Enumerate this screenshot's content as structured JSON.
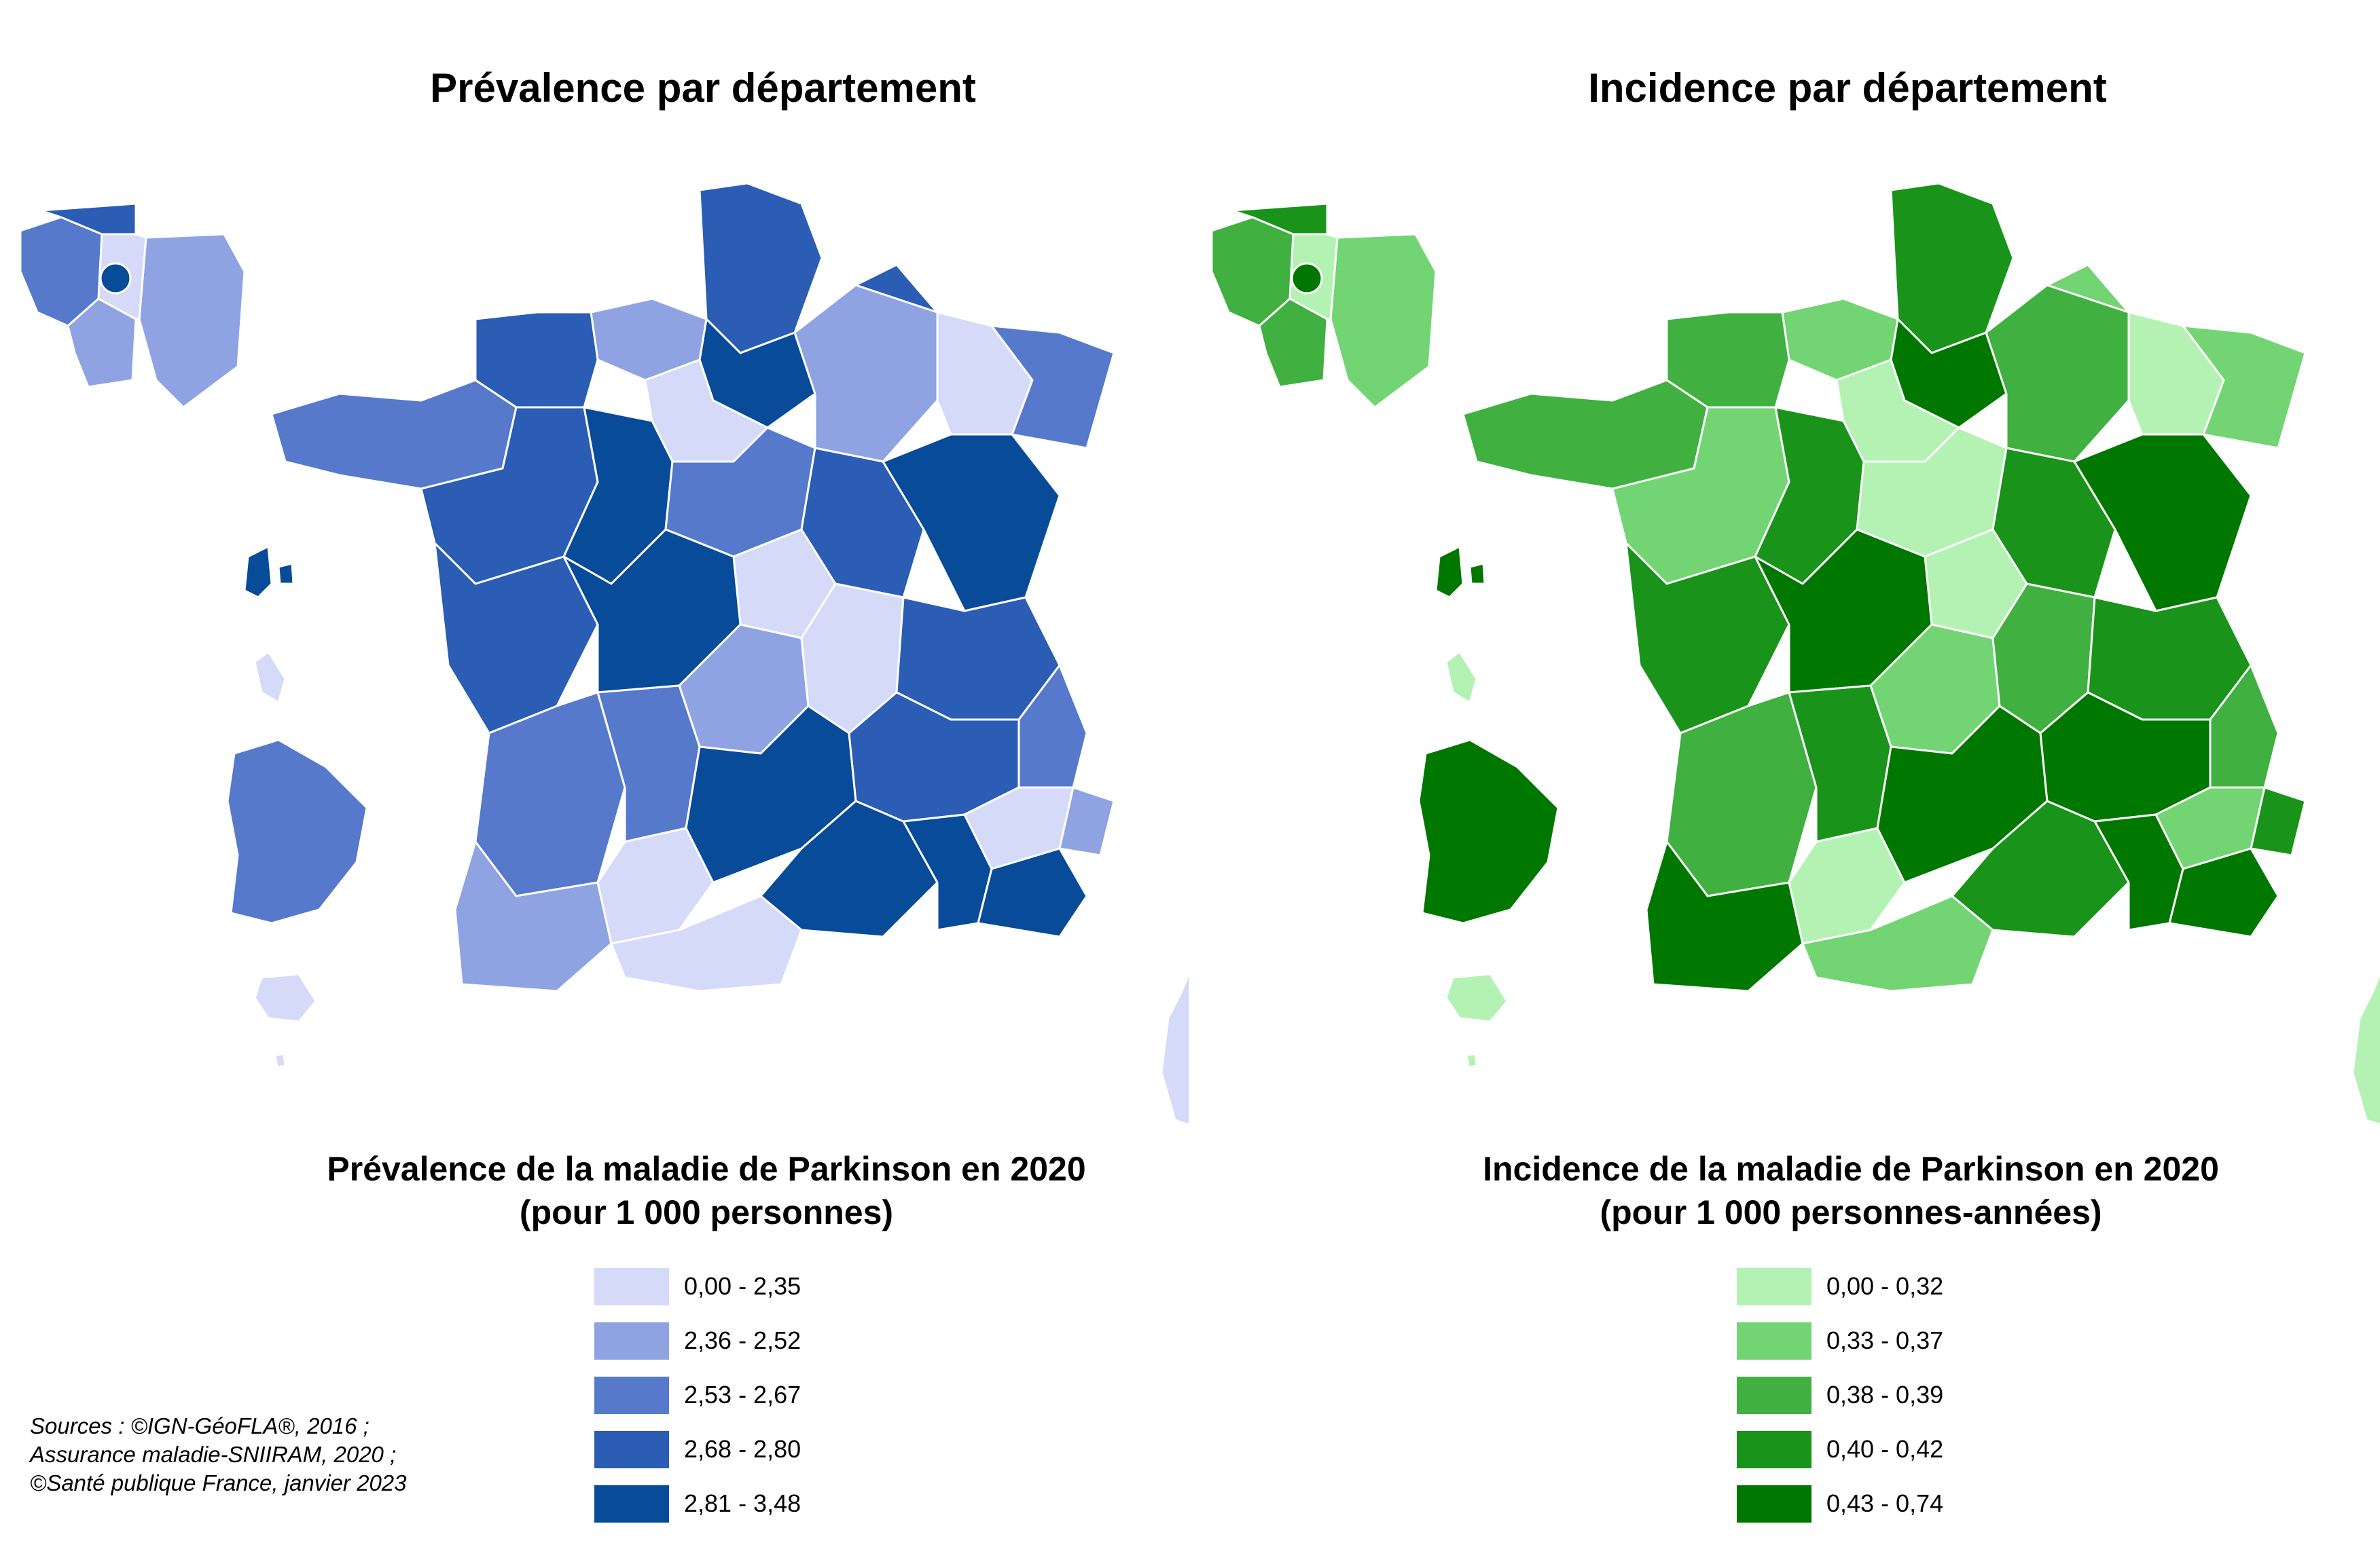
{
  "left": {
    "title": "Prévalence par département",
    "legend_title_line1": "Prévalence de la maladie de Parkinson en 2020",
    "legend_title_line2": "(pour 1 000 personnes)",
    "legend": [
      {
        "label": "0,00 - 2,35",
        "color": "#d4daf7"
      },
      {
        "label": "2,36 - 2,52",
        "color": "#8fa3e3"
      },
      {
        "label": "2,53 - 2,67",
        "color": "#5679cc"
      },
      {
        "label": "2,68 - 2,80",
        "color": "#2a5db3"
      },
      {
        "label": "2,81 - 3,48",
        "color": "#084b98"
      }
    ]
  },
  "right": {
    "title": "Incidence par département",
    "legend_title_line1": "Incidence de la maladie de Parkinson en 2020",
    "legend_title_line2": "(pour 1 000 personnes-années)",
    "legend": [
      {
        "label": "0,00 - 0,32",
        "color": "#b4f2b4"
      },
      {
        "label": "0,33 - 0,37",
        "color": "#73d473"
      },
      {
        "label": "0,38 - 0,39",
        "color": "#40b040"
      },
      {
        "label": "0,40 - 0,42",
        "color": "#1a931a"
      },
      {
        "label": "0,43 - 0,74",
        "color": "#007800"
      }
    ]
  },
  "sources": [
    "Sources : ©IGN-GéoFLA®, 2016 ;",
    "Assurance maladie-SNIIRAM, 2020 ;",
    "©Santé publique France, janvier 2023"
  ]
}
